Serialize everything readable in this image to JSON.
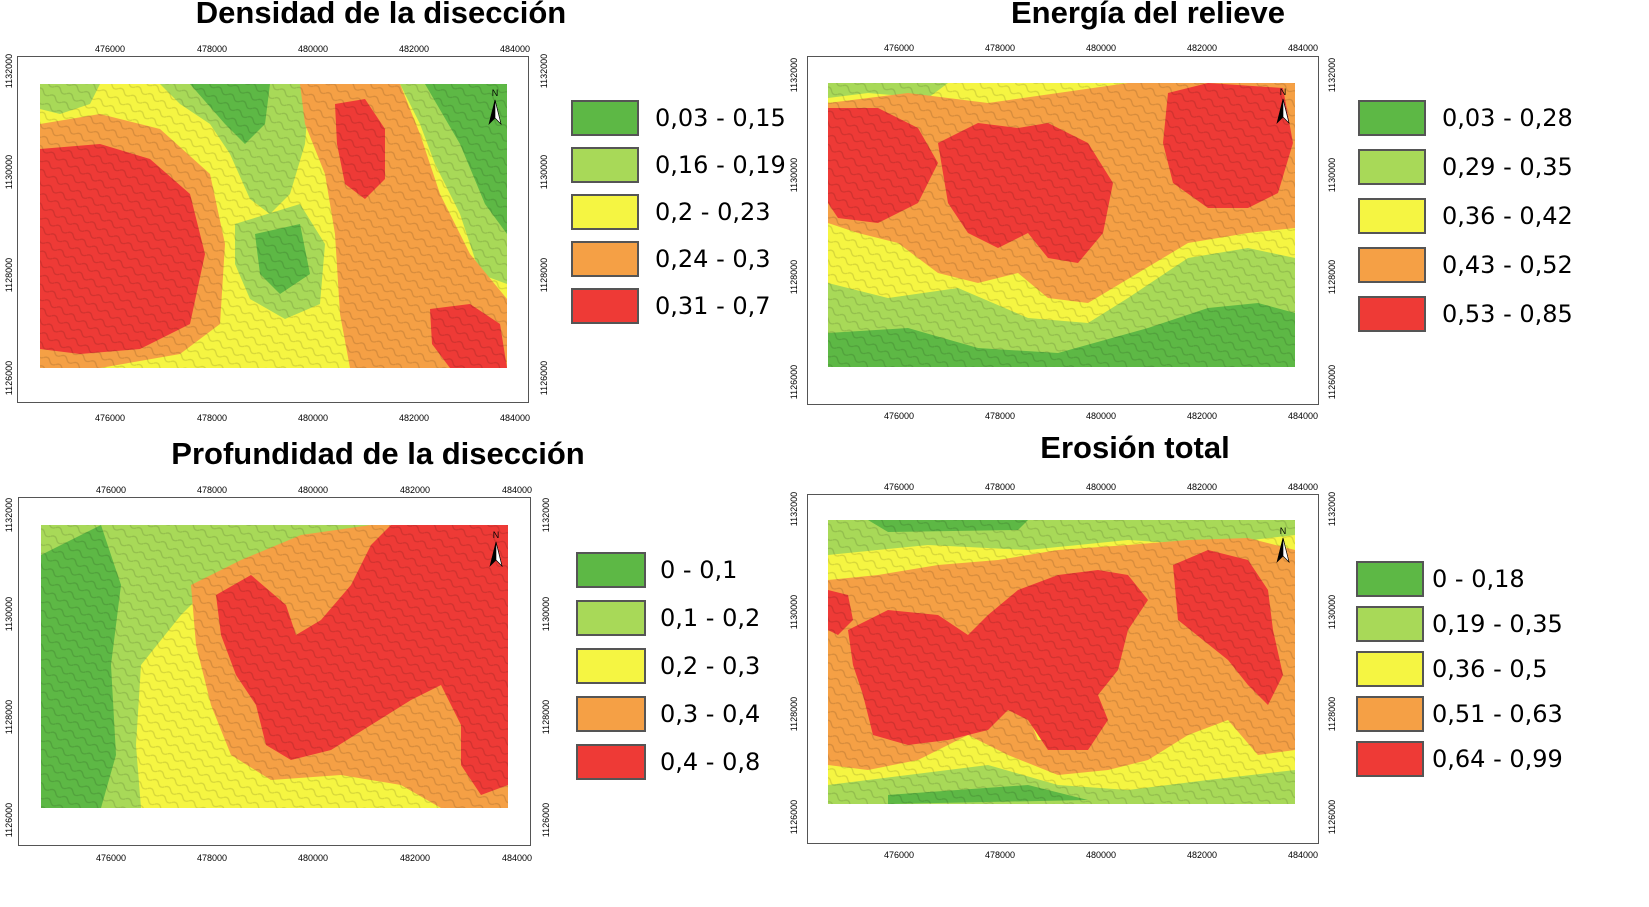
{
  "colors": {
    "class1": "#5db845",
    "class2": "#a8d958",
    "class3": "#f5f542",
    "class4": "#f5a045",
    "class5": "#ee3a36"
  },
  "axes": {
    "x_ticks": [
      "476000",
      "478000",
      "480000",
      "482000",
      "484000"
    ],
    "y_ticks": [
      "1126000",
      "1128000",
      "1130000",
      "1132000"
    ]
  },
  "north_label": "N",
  "panels": [
    {
      "title": "Densidad de la disección",
      "legend": [
        "0,03 - 0,15",
        "0,16 - 0,19",
        "0,2 - 0,23",
        "0,24 - 0,3",
        "0,31 - 0,7"
      ]
    },
    {
      "title": "Energía del relieve",
      "legend": [
        "0,03 - 0,28",
        "0,29 - 0,35",
        "0,36 - 0,42",
        "0,43 - 0,52",
        "0,53 - 0,85"
      ]
    },
    {
      "title": "Profundidad de la disección",
      "legend": [
        "0 - 0,1",
        "0,1 - 0,2",
        "0,2 - 0,3",
        "0,3 - 0,4",
        "0,4 - 0,8"
      ]
    },
    {
      "title": "Erosión total",
      "legend": [
        "0 - 0,18",
        "0,19 - 0,35",
        "0,36 - 0,5",
        "0,51 - 0,63",
        "0,64 - 0,99"
      ]
    }
  ]
}
